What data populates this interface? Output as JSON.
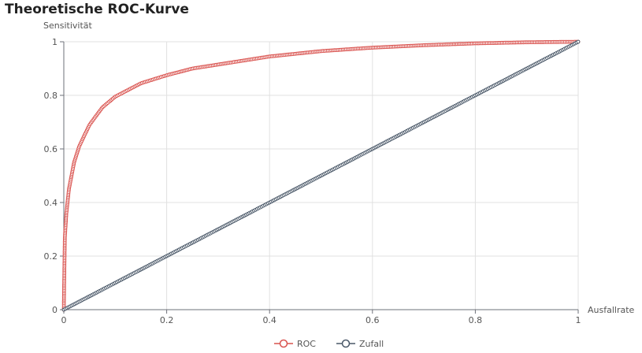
{
  "chart_data": {
    "type": "line",
    "title": "Theoretische ROC-Kurve",
    "xlabel": "Ausfallrate",
    "ylabel": "Sensitivität",
    "xlim": [
      0,
      1
    ],
    "ylim": [
      0,
      1
    ],
    "grid": true,
    "legend_position": "bottom",
    "x_ticks": [
      "0",
      "0.2",
      "0.4",
      "0.6",
      "0.8",
      "1"
    ],
    "y_ticks": [
      "0",
      "0.2",
      "0.4",
      "0.6",
      "0.8",
      "1"
    ],
    "series": [
      {
        "name": "ROC",
        "color": "#d9534f",
        "marker": "circle-hollow",
        "x": [
          0,
          0.002,
          0.005,
          0.01,
          0.02,
          0.03,
          0.05,
          0.075,
          0.1,
          0.15,
          0.2,
          0.25,
          0.3,
          0.4,
          0.5,
          0.6,
          0.7,
          0.8,
          0.9,
          1
        ],
        "y": [
          0,
          0.27,
          0.36,
          0.45,
          0.55,
          0.61,
          0.69,
          0.755,
          0.795,
          0.845,
          0.875,
          0.9,
          0.915,
          0.945,
          0.965,
          0.978,
          0.987,
          0.994,
          0.998,
          1
        ]
      },
      {
        "name": "Zufall",
        "color": "#4a5868",
        "marker": "circle-hollow",
        "x": [
          0,
          0.05,
          0.1,
          0.15,
          0.2,
          0.25,
          0.3,
          0.35,
          0.4,
          0.45,
          0.5,
          0.55,
          0.6,
          0.65,
          0.7,
          0.75,
          0.8,
          0.85,
          0.9,
          0.95,
          1
        ],
        "y": [
          0,
          0.05,
          0.1,
          0.15,
          0.2,
          0.25,
          0.3,
          0.35,
          0.4,
          0.45,
          0.5,
          0.55,
          0.6,
          0.65,
          0.7,
          0.75,
          0.8,
          0.85,
          0.9,
          0.95,
          1
        ]
      }
    ]
  }
}
